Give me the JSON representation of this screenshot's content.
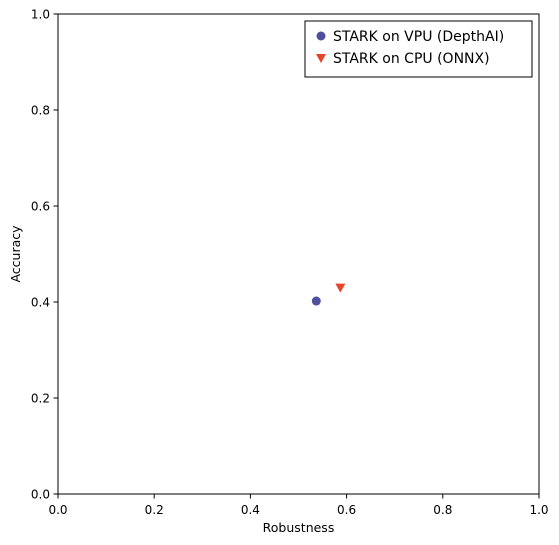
{
  "chart_data": {
    "type": "scatter",
    "title": "",
    "xlabel": "Robustness",
    "ylabel": "Accuracy",
    "xlim": [
      0.0,
      1.0
    ],
    "ylim": [
      0.0,
      1.0
    ],
    "xticks": [
      "0.0",
      "0.2",
      "0.4",
      "0.6",
      "0.8",
      "1.0"
    ],
    "yticks": [
      "0.0",
      "0.2",
      "0.4",
      "0.6",
      "0.8",
      "1.0"
    ],
    "grid": false,
    "legend_position": "top-right",
    "series": [
      {
        "name": "STARK on VPU (DepthAI)",
        "marker": "circle",
        "color": "#4f4f9c",
        "points": [
          {
            "x": 0.537,
            "y": 0.402
          }
        ]
      },
      {
        "name": "STARK on CPU (ONNX)",
        "marker": "triangle-down",
        "color": "#e8442a",
        "points": [
          {
            "x": 0.587,
            "y": 0.43
          }
        ]
      }
    ]
  }
}
